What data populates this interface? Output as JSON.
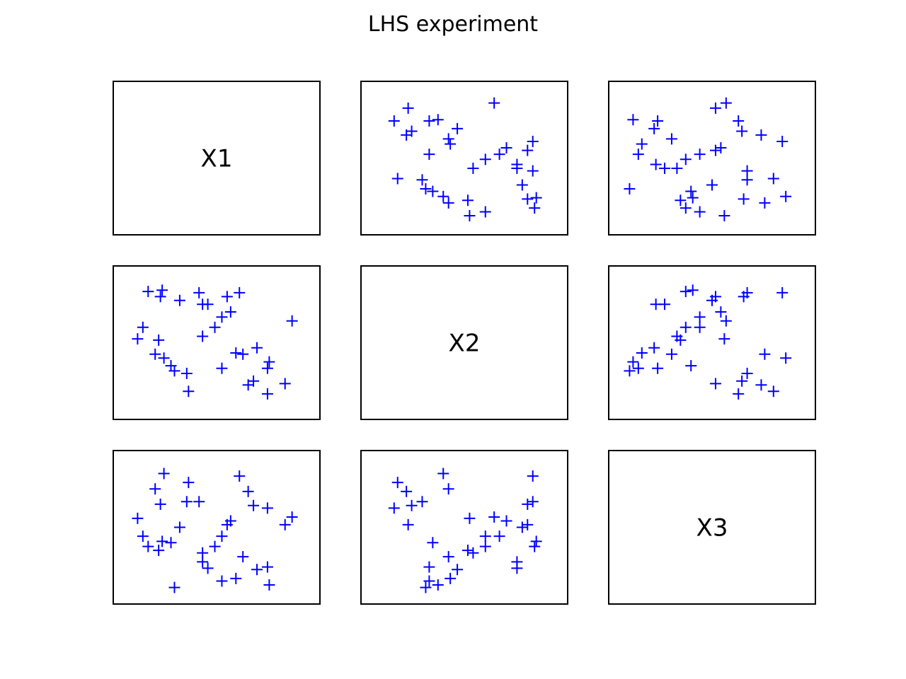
{
  "figure": {
    "title": "LHS experiment",
    "marker_color": "#0000ff",
    "frame_color": "#000000",
    "background": "#ffffff"
  },
  "chart_data": {
    "type": "scatter",
    "layout": "scatter-matrix",
    "title": "LHS experiment",
    "variables": [
      "X1",
      "X2",
      "X3"
    ],
    "ranges": [
      [
        0,
        1
      ],
      [
        0,
        1
      ],
      [
        0,
        1
      ]
    ],
    "axis_ticks": "none",
    "grid": false,
    "marker": "+",
    "samples": {
      "X1": [
        0.42,
        0.73,
        0.71,
        0.2,
        0.58,
        0.53,
        0.11,
        0.53,
        0.49,
        0.45,
        0.89,
        0.63,
        0.68,
        0.79,
        0.18,
        0.56,
        0.34,
        0.8,
        0.24,
        0.93,
        0.15,
        0.42,
        0.29,
        0.65,
        0.33,
        0.61,
        0.05,
        0.17,
        0.19,
        0.79,
        0.08,
        0.4,
        0.26
      ],
      "X2": [
        0.55,
        0.46,
        0.2,
        0.38,
        0.74,
        0.3,
        0.9,
        0.7,
        0.62,
        0.8,
        0.18,
        0.89,
        0.17,
        0.1,
        0.86,
        0.86,
        0.12,
        0.35,
        0.32,
        0.67,
        0.41,
        0.8,
        0.83,
        0.41,
        0.26,
        0.42,
        0.53,
        0.52,
        0.91,
        0.3,
        0.62,
        0.89,
        0.28
      ],
      "X3": [
        0.3,
        0.17,
        0.67,
        0.92,
        0.55,
        0.08,
        0.35,
        0.43,
        0.35,
        0.18,
        0.52,
        0.9,
        0.78,
        0.65,
        0.68,
        0.52,
        0.85,
        0.05,
        0.38,
        0.58,
        0.8,
        0.23,
        0.5,
        0.27,
        0.7,
        0.1,
        0.57,
        0.32,
        0.39,
        0.19,
        0.43,
        0.7,
        0.03
      ]
    }
  }
}
